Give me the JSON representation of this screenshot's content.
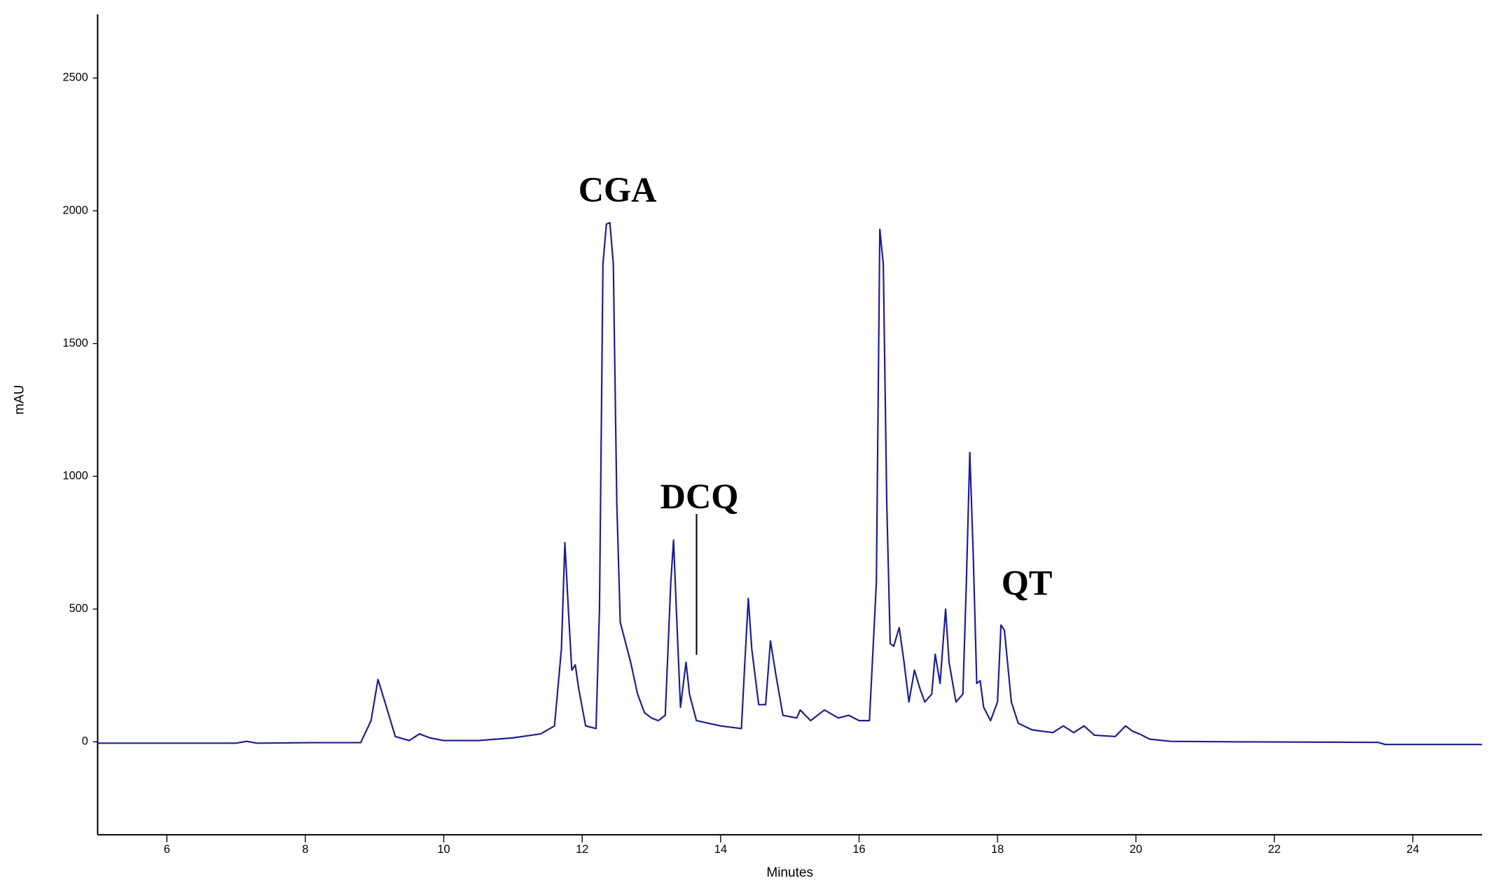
{
  "chart_data": {
    "type": "line",
    "x_label": "Minutes",
    "y_label": "mAU",
    "annotations": [
      "CGA",
      "DCQ",
      "QT"
    ],
    "xlim": [
      5,
      25
    ],
    "xticks": [
      6,
      8,
      10,
      12,
      14,
      16,
      18,
      20,
      22,
      24
    ],
    "ylim": [
      -350,
      2740
    ],
    "yticks": [
      0,
      500,
      1000,
      1500,
      2000,
      2500
    ],
    "series": [
      {
        "color": "#1c1c96",
        "x": [
          5.0,
          7.0,
          7.15,
          7.3,
          8.1,
          8.8,
          8.95,
          9.05,
          9.15,
          9.3,
          9.5,
          9.65,
          9.8,
          10.0,
          10.5,
          11.0,
          11.4,
          11.6,
          11.7,
          11.75,
          11.8,
          11.85,
          11.9,
          11.95,
          12.05,
          12.2,
          12.25,
          12.3,
          12.35,
          12.4,
          12.45,
          12.5,
          12.55,
          12.6,
          12.7,
          12.8,
          12.9,
          13.0,
          13.1,
          13.2,
          13.28,
          13.32,
          13.36,
          13.42,
          13.5,
          13.55,
          13.65,
          14.0,
          14.3,
          14.35,
          14.4,
          14.45,
          14.55,
          14.65,
          14.72,
          14.8,
          14.9,
          15.1,
          15.15,
          15.3,
          15.5,
          15.7,
          15.85,
          16.0,
          16.15,
          16.25,
          16.3,
          16.35,
          16.4,
          16.45,
          16.5,
          16.58,
          16.65,
          16.72,
          16.8,
          16.88,
          16.95,
          17.05,
          17.1,
          17.17,
          17.25,
          17.3,
          17.4,
          17.5,
          17.55,
          17.6,
          17.65,
          17.7,
          17.75,
          17.8,
          17.9,
          18.0,
          18.05,
          18.1,
          18.2,
          18.3,
          18.5,
          18.8,
          18.95,
          19.1,
          19.25,
          19.4,
          19.7,
          19.85,
          19.95,
          20.05,
          20.2,
          20.5,
          21.5,
          23.5,
          23.6,
          25.0
        ],
        "values": [
          -5,
          -5,
          2,
          -5,
          -3,
          -3,
          80,
          235,
          150,
          20,
          5,
          30,
          15,
          5,
          5,
          15,
          30,
          60,
          350,
          750,
          500,
          270,
          290,
          200,
          60,
          50,
          500,
          1800,
          1950,
          1955,
          1800,
          900,
          450,
          400,
          300,
          180,
          110,
          90,
          80,
          100,
          600,
          760,
          500,
          130,
          300,
          180,
          80,
          60,
          50,
          300,
          540,
          350,
          140,
          140,
          380,
          250,
          100,
          90,
          120,
          80,
          120,
          90,
          100,
          80,
          80,
          600,
          1930,
          1800,
          900,
          370,
          360,
          430,
          300,
          150,
          270,
          200,
          150,
          180,
          330,
          220,
          500,
          300,
          150,
          180,
          600,
          1090,
          700,
          220,
          230,
          130,
          80,
          150,
          440,
          420,
          150,
          70,
          45,
          35,
          60,
          35,
          60,
          25,
          20,
          60,
          40,
          30,
          10,
          2,
          0,
          -2,
          -10,
          -10
        ]
      }
    ]
  }
}
